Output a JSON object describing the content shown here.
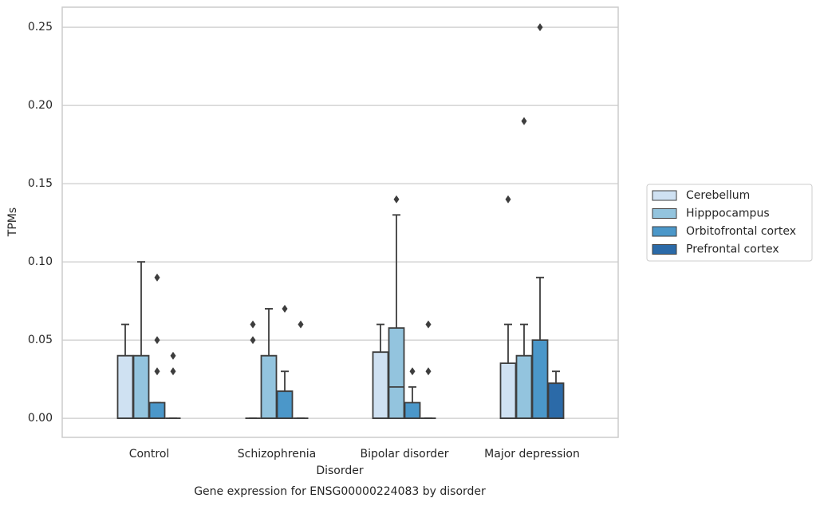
{
  "chart_data": {
    "type": "box",
    "title": "Gene expression for ENSG00000224083 by disorder",
    "xlabel": "Disorder",
    "ylabel": "TPMs",
    "categories": [
      "Control",
      "Schizophrenia",
      "Bipolar disorder",
      "Major depression"
    ],
    "ylim": [
      -0.0122,
      0.2628
    ],
    "yticks": [
      {
        "value": 0,
        "label": "0.00"
      },
      0.05,
      {
        "value": 0.1,
        "label": "0.10"
      },
      0.15,
      {
        "value": 0.2,
        "label": "0.20"
      },
      0.25
    ],
    "grid": true,
    "legend": "right",
    "series": [
      {
        "name": "Cerebellum",
        "color": "#cfe1f2",
        "values": [
          {
            "whislo": 0,
            "q1": 0,
            "med": 0,
            "q3": 0.04,
            "whishi": 0.06,
            "fliers": []
          },
          {
            "whislo": 0,
            "q1": 0,
            "med": 0,
            "q3": 0,
            "whishi": 0,
            "fliers": [
              0.06,
              0.05
            ]
          },
          {
            "whislo": 0,
            "q1": 0,
            "med": 0,
            "q3": 0.0423,
            "whishi": 0.06,
            "fliers": []
          },
          {
            "whislo": 0,
            "q1": 0,
            "med": 0,
            "q3": 0.0352,
            "whishi": 0.06,
            "fliers": [
              0.14
            ]
          }
        ]
      },
      {
        "name": "Hipppocampus",
        "color": "#93c4de",
        "values": [
          {
            "whislo": 0,
            "q1": 0,
            "med": 0,
            "q3": 0.04,
            "whishi": 0.1,
            "fliers": []
          },
          {
            "whislo": 0,
            "q1": 0,
            "med": 0,
            "q3": 0.04,
            "whishi": 0.07,
            "fliers": []
          },
          {
            "whislo": 0,
            "q1": 0,
            "med": 0.02,
            "q3": 0.0577,
            "whishi": 0.13,
            "fliers": [
              0.14
            ]
          },
          {
            "whislo": 0,
            "q1": 0,
            "med": 0,
            "q3": 0.04,
            "whishi": 0.06,
            "fliers": [
              0.19
            ]
          }
        ]
      },
      {
        "name": "Orbitofrontal cortex",
        "color": "#4b97c9",
        "values": [
          {
            "whislo": 0,
            "q1": 0,
            "med": 0,
            "q3": 0.01,
            "whishi": 0.01,
            "fliers": [
              0.09,
              0.05,
              0.03
            ]
          },
          {
            "whislo": 0,
            "q1": 0,
            "med": 0,
            "q3": 0.0173,
            "whishi": 0.03,
            "fliers": [
              0.07
            ]
          },
          {
            "whislo": 0,
            "q1": 0,
            "med": 0,
            "q3": 0.01,
            "whishi": 0.02,
            "fliers": [
              0.03
            ]
          },
          {
            "whislo": 0,
            "q1": 0,
            "med": 0,
            "q3": 0.05,
            "whishi": 0.09,
            "fliers": [
              0.25
            ]
          }
        ]
      },
      {
        "name": "Prefrontal cortex",
        "color": "#2b6aa8",
        "values": [
          {
            "whislo": 0,
            "q1": 0,
            "med": 0,
            "q3": 0,
            "whishi": 0,
            "fliers": [
              0.04,
              0.03
            ]
          },
          {
            "whislo": 0,
            "q1": 0,
            "med": 0,
            "q3": 0,
            "whishi": 0,
            "fliers": [
              0.06
            ]
          },
          {
            "whislo": 0,
            "q1": 0,
            "med": 0,
            "q3": 0,
            "whishi": 0,
            "fliers": [
              0.06,
              0.03
            ]
          },
          {
            "whislo": 0,
            "q1": 0,
            "med": 0,
            "q3": 0.0224,
            "whishi": 0.03,
            "fliers": []
          }
        ]
      }
    ]
  }
}
